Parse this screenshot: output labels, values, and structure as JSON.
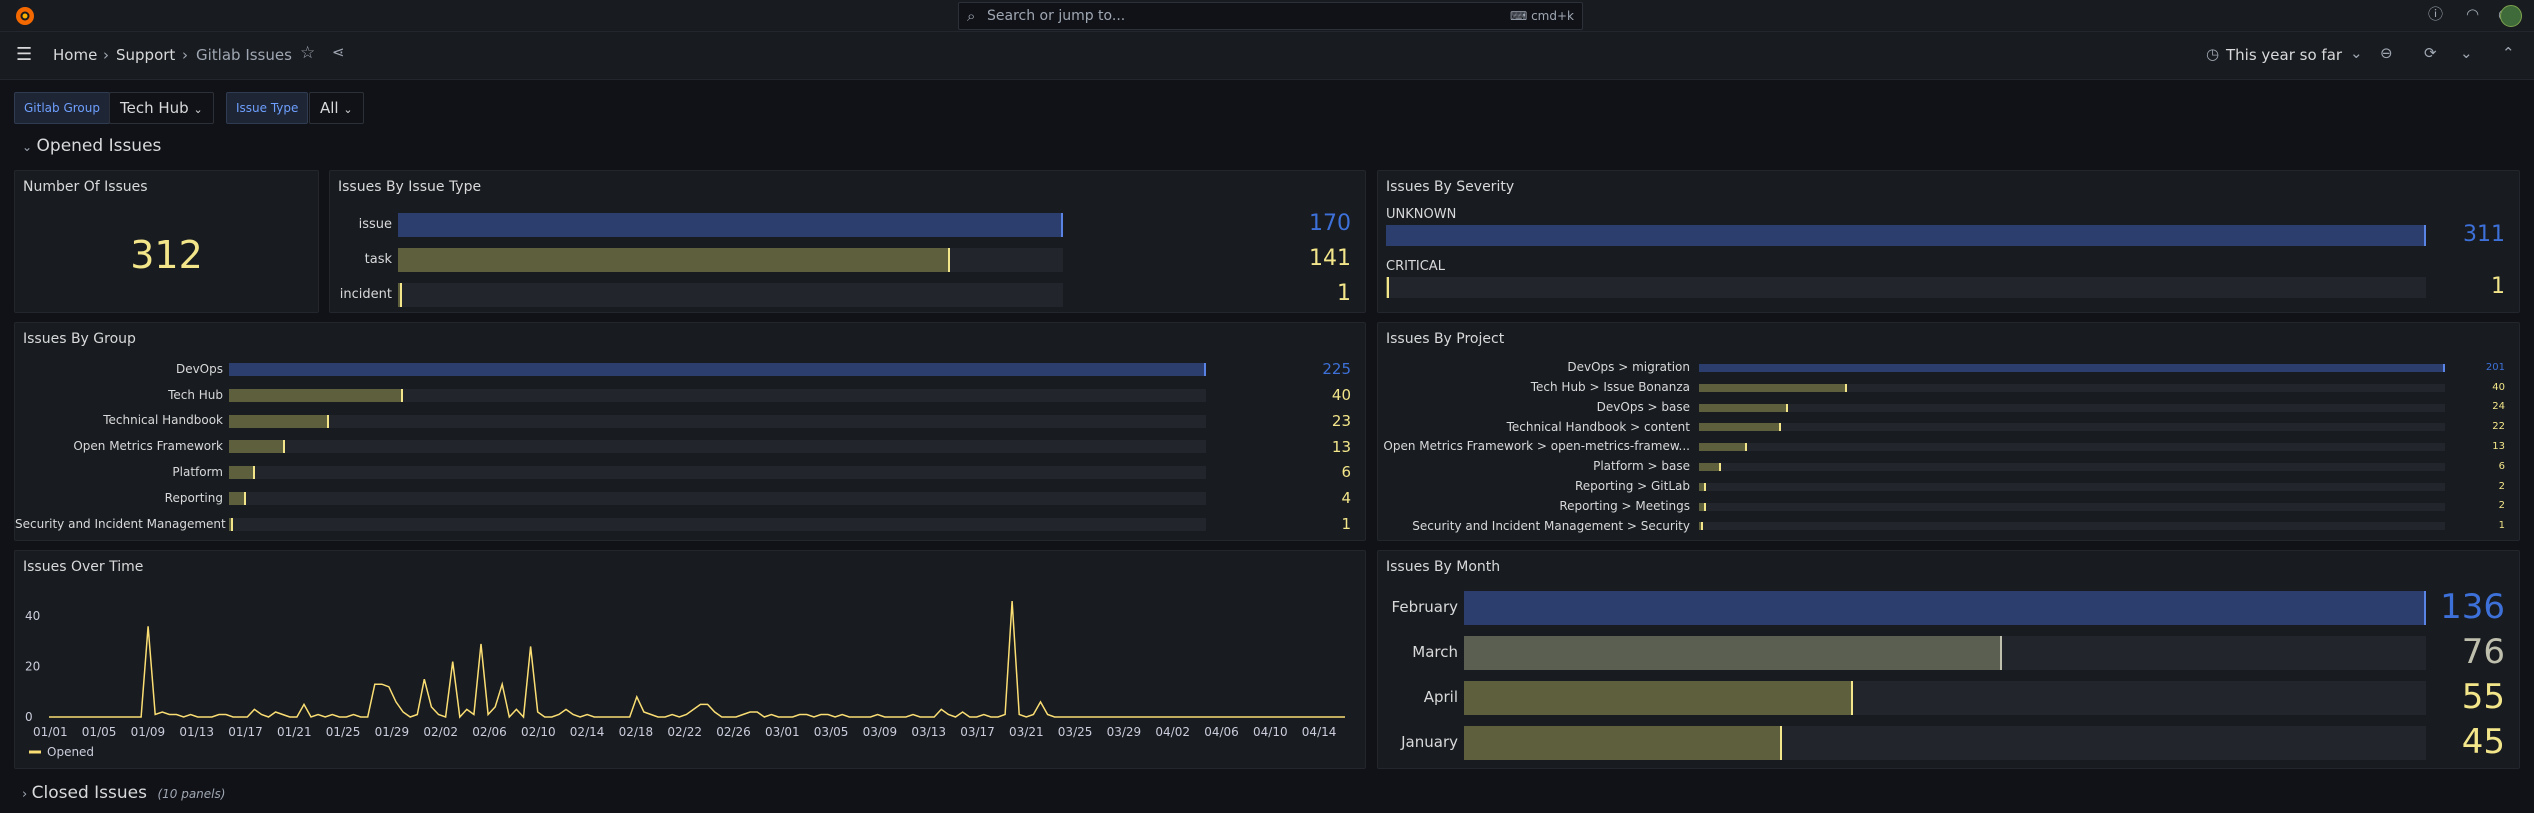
{
  "topbar": {
    "search_placeholder": "Search or jump to...",
    "shortcut": "cmd+k"
  },
  "breadcrumb": [
    "Home",
    "Support",
    "Gitlab Issues"
  ],
  "time_picker": "This year so far",
  "variables": [
    {
      "label": "Gitlab Group",
      "value": "Tech Hub"
    },
    {
      "label": "Issue Type",
      "value": "All"
    }
  ],
  "rows": {
    "opened": "Opened Issues",
    "closed": "Closed Issues",
    "closed_count": "(10 panels)"
  },
  "panels": {
    "number": {
      "title": "Number Of Issues",
      "value": "312"
    },
    "by_type": {
      "title": "Issues By Issue Type",
      "items": [
        {
          "label": "issue",
          "value": 170,
          "display": "170"
        },
        {
          "label": "task",
          "value": 141,
          "display": "141"
        },
        {
          "label": "incident",
          "value": 1,
          "display": "1"
        }
      ]
    },
    "by_severity": {
      "title": "Issues By Severity",
      "items": [
        {
          "label": "UNKNOWN",
          "value": 311,
          "display": "311"
        },
        {
          "label": "CRITICAL",
          "value": 1,
          "display": "1"
        }
      ]
    },
    "by_group": {
      "title": "Issues By Group",
      "items": [
        {
          "label": "DevOps",
          "value": 225,
          "display": "225"
        },
        {
          "label": "Tech Hub",
          "value": 40,
          "display": "40"
        },
        {
          "label": "Technical Handbook",
          "value": 23,
          "display": "23"
        },
        {
          "label": "Open Metrics Framework",
          "value": 13,
          "display": "13"
        },
        {
          "label": "Platform",
          "value": 6,
          "display": "6"
        },
        {
          "label": "Reporting",
          "value": 4,
          "display": "4"
        },
        {
          "label": "Security and Incident Management",
          "value": 1,
          "display": "1"
        }
      ]
    },
    "by_project": {
      "title": "Issues By Project",
      "items": [
        {
          "label": "DevOps > migration",
          "value": 201,
          "display": "201"
        },
        {
          "label": "Tech Hub > Issue Bonanza",
          "value": 40,
          "display": "40"
        },
        {
          "label": "DevOps > base",
          "value": 24,
          "display": "24"
        },
        {
          "label": "Technical Handbook > content",
          "value": 22,
          "display": "22"
        },
        {
          "label": "Open Metrics Framework > open-metrics-framew...",
          "value": 13,
          "display": "13"
        },
        {
          "label": "Platform > base",
          "value": 6,
          "display": "6"
        },
        {
          "label": "Reporting > GitLab",
          "value": 2,
          "display": "2"
        },
        {
          "label": "Reporting > Meetings",
          "value": 2,
          "display": "2"
        },
        {
          "label": "Security and Incident Management > Security",
          "value": 1,
          "display": "1"
        }
      ]
    },
    "by_month": {
      "title": "Issues By Month",
      "items": [
        {
          "label": "February",
          "value": 136,
          "display": "136"
        },
        {
          "label": "March",
          "value": 76,
          "display": "76"
        },
        {
          "label": "April",
          "value": 55,
          "display": "55"
        },
        {
          "label": "January",
          "value": 45,
          "display": "45"
        }
      ]
    },
    "over_time": {
      "title": "Issues Over Time"
    }
  },
  "colors": {
    "blue_text": "#3d71d9",
    "blue_bar": "#2c3e6e",
    "blue_cap": "#5a83e6",
    "olive_bar": "#5e5f3d",
    "gray_bar": "#5b5f52",
    "yellow": "#f2e58a",
    "light_yellow": "#fade74",
    "tan": "#bfbfae"
  },
  "chart_data": {
    "type": "line",
    "ylim": [
      0,
      50
    ],
    "yticks": [
      0,
      20,
      40
    ],
    "x_ticks": [
      "01/01",
      "01/05",
      "01/09",
      "01/13",
      "01/17",
      "01/21",
      "01/25",
      "01/29",
      "02/02",
      "02/06",
      "02/10",
      "02/14",
      "02/18",
      "02/22",
      "02/26",
      "03/01",
      "03/05",
      "03/09",
      "03/13",
      "03/17",
      "03/21",
      "03/25",
      "03/29",
      "04/02",
      "04/06",
      "04/10",
      "04/14"
    ],
    "series": [
      {
        "name": "Opened",
        "color": "#fade74",
        "values": [
          0,
          0,
          0,
          0,
          0,
          0,
          0,
          0,
          0,
          0,
          0,
          0,
          0,
          0,
          36,
          1,
          2,
          1,
          1,
          0,
          1,
          0,
          0,
          0,
          1,
          1,
          0,
          0,
          0,
          3,
          1,
          0,
          2,
          1,
          0,
          0,
          5,
          0,
          1,
          0,
          1,
          0,
          0,
          1,
          0,
          0,
          13,
          13,
          12,
          6,
          2,
          0,
          1,
          15,
          4,
          1,
          0,
          22,
          0,
          3,
          1,
          29,
          1,
          4,
          13,
          0,
          3,
          0,
          28,
          2,
          0,
          0,
          1,
          3,
          1,
          0,
          1,
          0,
          0,
          0,
          0,
          0,
          0,
          8,
          2,
          1,
          0,
          0,
          1,
          0,
          1,
          3,
          5,
          5,
          2,
          0,
          0,
          0,
          1,
          2,
          2,
          0,
          1,
          0,
          0,
          0,
          1,
          1,
          0,
          1,
          1,
          0,
          1,
          0,
          0,
          0,
          0,
          1,
          0,
          0,
          0,
          0,
          1,
          0,
          0,
          0,
          3,
          1,
          0,
          2,
          0,
          0,
          1,
          0,
          0,
          1,
          46,
          1,
          0,
          1,
          6,
          1,
          0,
          0,
          0,
          0,
          0,
          0,
          0,
          0,
          0,
          0,
          0,
          0,
          0,
          0,
          0,
          0,
          0,
          0,
          0,
          0,
          0,
          0,
          0,
          0,
          0,
          0,
          0,
          0,
          0,
          0,
          0,
          0,
          0,
          0,
          0,
          0,
          0,
          0,
          0,
          0,
          0,
          0
        ]
      }
    ]
  }
}
